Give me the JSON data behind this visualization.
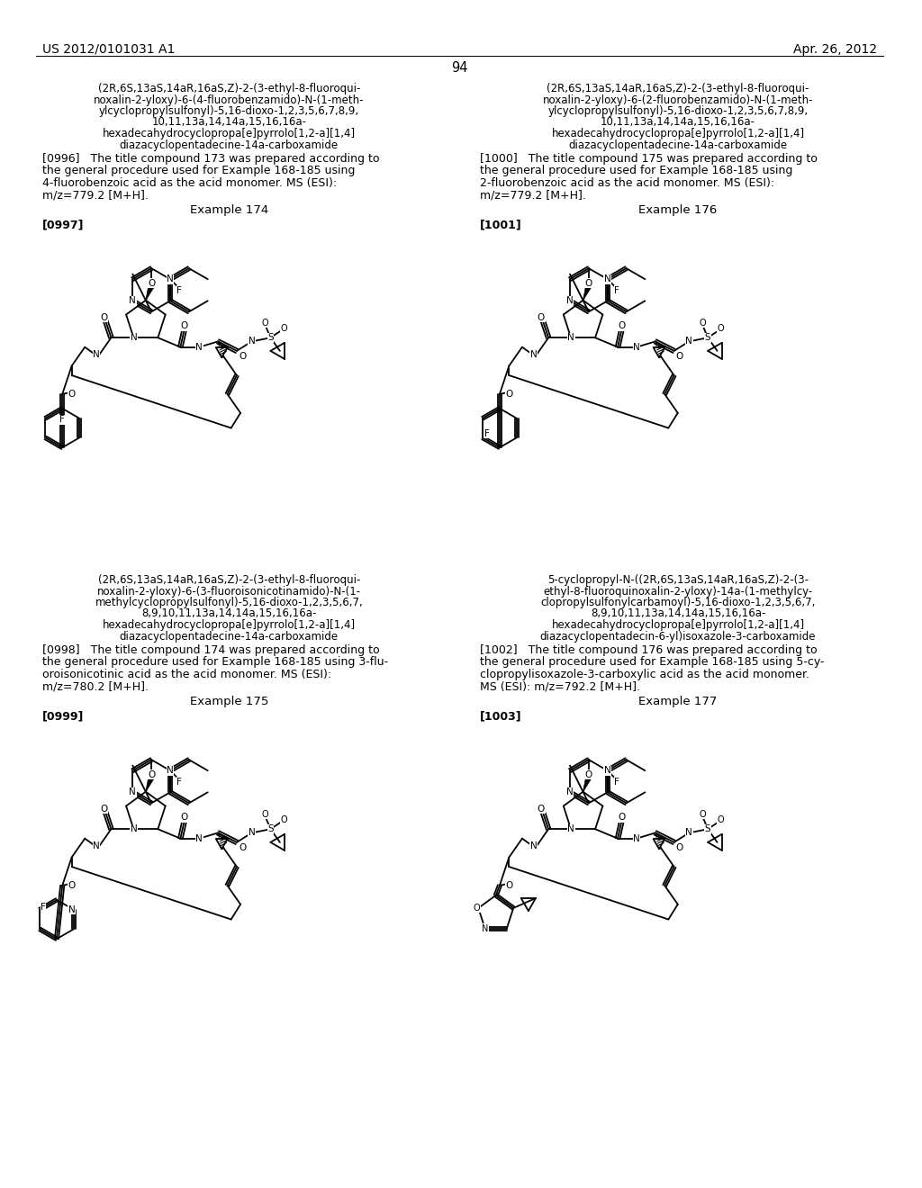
{
  "page_header_left": "US 2012/0101031 A1",
  "page_header_right": "Apr. 26, 2012",
  "page_number": "94",
  "background_color": "#ffffff",
  "left_col_title_173": "(2R,6S,13aS,14aR,16aS,Z)-2-(3-ethyl-8-fluoroqui-\nnoxalin-2-yloxy)-6-(4-fluorobenzamido)-N-(1-meth-\nylcyclopropylsulfonyl)-5,16-dioxo-1,2,3,5,6,7,8,9,\n10,11,13a,14,14a,15,16,16a-\nhexadecahydrocyclopropa[e]pyrrolo[1,2-a][1,4]\ndiazacyclopentadecine-14a-carboxamide",
  "left_ref_173": "[0996]   The title compound 173 was prepared according to\nthe general procedure used for Example 168-185 using\n4-fluorobenzoic acid as the acid monomer. MS (ESI):\nm/z=779.2 [M+H].",
  "left_example_174": "Example 174",
  "left_ref_174_tag": "[0997]",
  "left_col_title_174": "(2R,6S,13aS,14aR,16aS,Z)-2-(3-ethyl-8-fluoroqui-\nnoxalin-2-yloxy)-6-(3-fluoroisonicotinamido)-N-(1-\nmethylcyclopropylsulfonyl)-5,16-dioxo-1,2,3,5,6,7,\n8,9,10,11,13a,14,14a,15,16,16a-\nhexadecahydrocyclopropa[e]pyrrolo[1,2-a][1,4]\ndiazacyclopentadecine-14a-carboxamide",
  "left_ref_174_body": "[0998]   The title compound 174 was prepared according to\nthe general procedure used for Example 168-185 using 3-flu-\noroisonicotinic acid as the acid monomer. MS (ESI):\nm/z=780.2 [M+H].",
  "left_example_175": "Example 175",
  "left_ref_175_tag": "[0999]",
  "right_col_title_175": "(2R,6S,13aS,14aR,16aS,Z)-2-(3-ethyl-8-fluoroqui-\nnoxalin-2-yloxy)-6-(2-fluorobenzamido)-N-(1-meth-\nylcyclopropylsulfonyl)-5,16-dioxo-1,2,3,5,6,7,8,9,\n10,11,13a,14,14a,15,16,16a-\nhexadecahydrocyclopropa[e]pyrrolo[1,2-a][1,4]\ndiazacyclopentadecine-14a-carboxamide",
  "right_ref_175": "[1000]   The title compound 175 was prepared according to\nthe general procedure used for Example 168-185 using\n2-fluorobenzoic acid as the acid monomer. MS (ESI):\nm/z=779.2 [M+H].",
  "right_example_176": "Example 176",
  "right_ref_176_tag": "[1001]",
  "right_col_title_176": "5-cyclopropyl-N-((2R,6S,13aS,14aR,16aS,Z)-2-(3-\nethyl-8-fluoroquinoxalin-2-yloxy)-14a-(1-methylcy-\nclopropylsulfonylcarbamoyl)-5,16-dioxo-1,2,3,5,6,7,\n8,9,10,11,13a,14,14a,15,16,16a-\nhexadecahydrocyclopropa[e]pyrrolo[1,2-a][1,4]\ndiazacyclopentadecin-6-yl)isoxazole-3-carboxamide",
  "right_ref_176_body": "[1002]   The title compound 176 was prepared according to\nthe general procedure used for Example 168-185 using 5-cy-\nclopropylisoxazole-3-carboxylic acid as the acid monomer.\nMS (ESI): m/z=792.2 [M+H].",
  "right_example_177": "Example 177",
  "right_ref_177_tag": "[1003]"
}
